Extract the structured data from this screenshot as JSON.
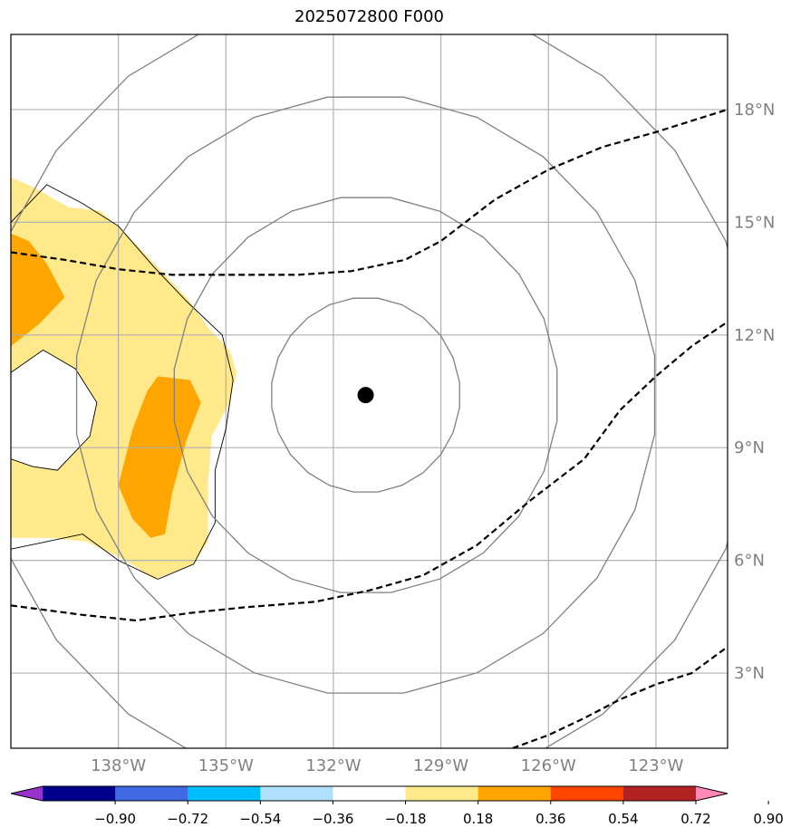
{
  "title": "2025072800 F000",
  "map": {
    "lon_range": [
      -141,
      -121
    ],
    "lat_range": [
      1,
      20
    ],
    "lon_ticks": [
      {
        "value": -138,
        "label": "138°W"
      },
      {
        "value": -135,
        "label": "135°W"
      },
      {
        "value": -132,
        "label": "132°W"
      },
      {
        "value": -129,
        "label": "129°W"
      },
      {
        "value": -126,
        "label": "126°W"
      },
      {
        "value": -123,
        "label": "123°W"
      }
    ],
    "lat_ticks": [
      {
        "value": 3,
        "label": "3°N"
      },
      {
        "value": 6,
        "label": "6°N"
      },
      {
        "value": 9,
        "label": "9°N"
      },
      {
        "value": 12,
        "label": "12°N"
      },
      {
        "value": 15,
        "label": "15°N"
      },
      {
        "value": 18,
        "label": "18°N"
      }
    ],
    "grid": true,
    "center": {
      "lon": -131.1,
      "lat": 10.4
    },
    "range_rings_deg": [
      2.6,
      5.3,
      8.0,
      10.7
    ],
    "colors": {
      "grid": "#b0b0b0",
      "ring": "#808080",
      "track": "#000000",
      "light_yellow": "#ffe98a",
      "orange": "#ffa500",
      "marker": "#000000"
    },
    "shaded_regions": [
      {
        "level": "0.18-0.36",
        "color": "#ffe98a",
        "points": [
          [
            -141,
            16.2
          ],
          [
            -140.3,
            15.9
          ],
          [
            -139.4,
            15.4
          ],
          [
            -138.5,
            15.3
          ],
          [
            -137.8,
            14.7
          ],
          [
            -137.0,
            13.9
          ],
          [
            -136.1,
            13.0
          ],
          [
            -135.5,
            12.2
          ],
          [
            -134.9,
            11.6
          ],
          [
            -134.7,
            11.0
          ],
          [
            -134.9,
            10.2
          ],
          [
            -135.4,
            9.3
          ],
          [
            -135.5,
            8.0
          ],
          [
            -135.5,
            6.5
          ],
          [
            -135.9,
            5.9
          ],
          [
            -137.0,
            5.5
          ],
          [
            -137.8,
            6.0
          ],
          [
            -138.9,
            6.5
          ],
          [
            -139.9,
            6.6
          ],
          [
            -141,
            6.6
          ]
        ]
      },
      {
        "level": "0.36-0.54",
        "color": "#ffa500",
        "points": [
          [
            -141,
            14.7
          ],
          [
            -140.5,
            14.5
          ],
          [
            -140.0,
            13.9
          ],
          [
            -139.5,
            13.0
          ],
          [
            -140.2,
            12.3
          ],
          [
            -141,
            11.7
          ]
        ]
      },
      {
        "level": "0.36-0.54",
        "color": "#ffa500",
        "points": [
          [
            -136.9,
            10.9
          ],
          [
            -136.0,
            10.8
          ],
          [
            -135.7,
            10.2
          ],
          [
            -136.1,
            9.2
          ],
          [
            -136.5,
            7.8
          ],
          [
            -136.7,
            6.7
          ],
          [
            -137.1,
            6.6
          ],
          [
            -137.6,
            7.1
          ],
          [
            -138.0,
            8.0
          ],
          [
            -137.6,
            9.5
          ],
          [
            -137.2,
            10.5
          ]
        ]
      },
      {
        "level": "blank",
        "color": "#ffffff",
        "points": [
          [
            -141,
            11.0
          ],
          [
            -140.1,
            11.6
          ],
          [
            -139.2,
            11.1
          ],
          [
            -138.6,
            10.2
          ],
          [
            -138.8,
            9.3
          ],
          [
            -139.7,
            8.4
          ],
          [
            -140.4,
            8.5
          ],
          [
            -141,
            8.7
          ]
        ]
      }
    ],
    "contours": [
      {
        "points": [
          [
            -141,
            15.0
          ],
          [
            -140.0,
            16.0
          ],
          [
            -139.0,
            15.5
          ],
          [
            -138.0,
            14.9
          ],
          [
            -137.0,
            13.8
          ],
          [
            -136.1,
            12.9
          ],
          [
            -135.1,
            12.0
          ],
          [
            -134.8,
            10.8
          ],
          [
            -135.0,
            9.5
          ],
          [
            -135.3,
            8.4
          ],
          [
            -135.3,
            7.0
          ],
          [
            -135.9,
            5.9
          ],
          [
            -136.9,
            5.5
          ],
          [
            -138.0,
            6.0
          ],
          [
            -139.0,
            6.7
          ],
          [
            -140.0,
            6.5
          ],
          [
            -141,
            6.3
          ]
        ]
      },
      {
        "points": [
          [
            -141,
            11.0
          ],
          [
            -140.1,
            11.6
          ],
          [
            -139.2,
            11.1
          ],
          [
            -138.6,
            10.2
          ],
          [
            -138.8,
            9.3
          ],
          [
            -139.7,
            8.4
          ],
          [
            -140.4,
            8.5
          ],
          [
            -141,
            8.7
          ]
        ]
      }
    ],
    "tracks": [
      {
        "points": [
          [
            -141,
            14.2
          ],
          [
            -139.5,
            14.0
          ],
          [
            -138.0,
            13.75
          ],
          [
            -136.5,
            13.6
          ],
          [
            -135,
            13.6
          ],
          [
            -133,
            13.6
          ],
          [
            -131.5,
            13.7
          ],
          [
            -130.0,
            14.0
          ],
          [
            -129.0,
            14.5
          ],
          [
            -127.5,
            15.6
          ],
          [
            -126.0,
            16.4
          ],
          [
            -124.5,
            17.0
          ],
          [
            -123.0,
            17.4
          ],
          [
            -121.0,
            18.0
          ]
        ]
      },
      {
        "points": [
          [
            -141,
            4.8
          ],
          [
            -139.0,
            4.55
          ],
          [
            -137.5,
            4.4
          ],
          [
            -136.0,
            4.6
          ],
          [
            -134.5,
            4.75
          ],
          [
            -132.5,
            4.9
          ],
          [
            -131.0,
            5.2
          ],
          [
            -129.5,
            5.6
          ],
          [
            -128.0,
            6.4
          ],
          [
            -126.5,
            7.6
          ],
          [
            -125.0,
            8.7
          ],
          [
            -124.0,
            10.0
          ],
          [
            -123.0,
            10.9
          ],
          [
            -122.0,
            11.7
          ],
          [
            -121.0,
            12.35
          ]
        ]
      },
      {
        "points": [
          [
            -127.0,
            1.0
          ],
          [
            -126.0,
            1.35
          ],
          [
            -125.0,
            1.8
          ],
          [
            -124.0,
            2.3
          ],
          [
            -123.0,
            2.7
          ],
          [
            -122.0,
            3.0
          ],
          [
            -121.0,
            3.7
          ]
        ]
      }
    ]
  },
  "colorbar": {
    "colors": [
      "#9932cc",
      "#00008b",
      "#4169e1",
      "#00bfff",
      "#b0e0ff",
      "#ffffff",
      "#ffe98a",
      "#ffa500",
      "#ff4500",
      "#b22222",
      "#ff88b8"
    ],
    "labels": [
      "−0.90",
      "−0.72",
      "−0.54",
      "−0.36",
      "−0.18",
      "0.18",
      "0.36",
      "0.54",
      "0.72",
      "0.90"
    ]
  }
}
